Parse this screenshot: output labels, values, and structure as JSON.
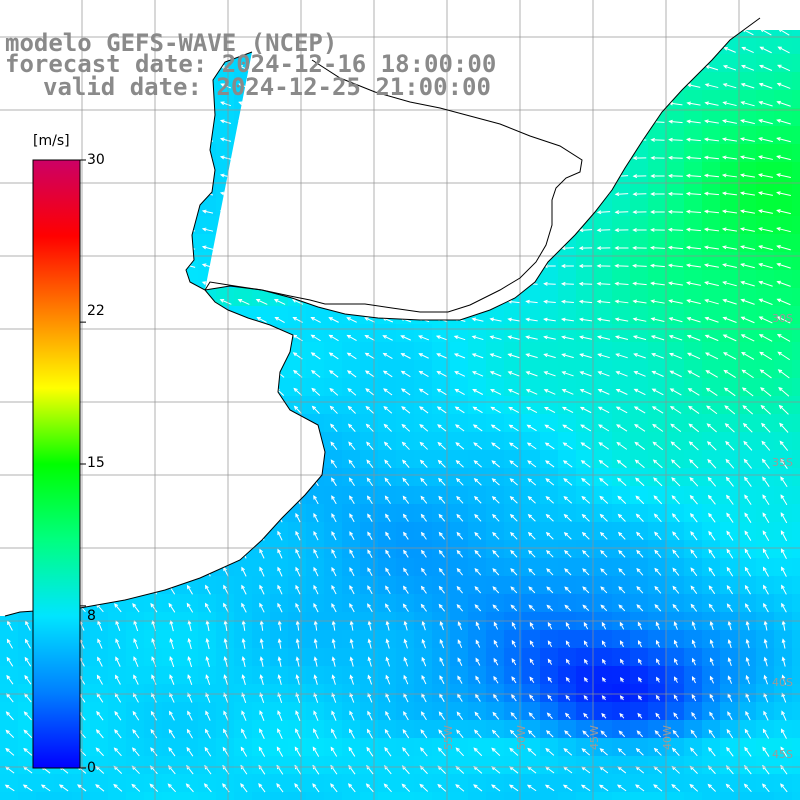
{
  "header": {
    "model": "modelo GEFS-WAVE (NCEP)",
    "forecast": "forecast date: 2024-12-16 18:00:00",
    "valid": "valid date: 2024-12-25 21:00:00"
  },
  "colorbar": {
    "units": "[m/s]",
    "min": 0,
    "max": 30,
    "tick_labels": [
      "30",
      "22",
      "15",
      "8",
      "0"
    ],
    "tick_values": [
      30,
      22,
      15,
      8,
      0
    ],
    "colors": [
      "#0000ff",
      "#0080ff",
      "#00e5ff",
      "#00ff80",
      "#00ff00",
      "#ffff00",
      "#ff8000",
      "#ff0000",
      "#cc0066"
    ]
  },
  "map": {
    "land_color": "#ffffff",
    "coastline_color": "#000000",
    "grid_color": "#909090",
    "arrow_color": "#ffffff",
    "lon_labels": [
      "55W",
      "50W",
      "45W",
      "40W"
    ],
    "lat_labels": [
      "30S",
      "35S",
      "40S",
      "45S"
    ],
    "lon_range": [
      -59,
      -45
    ],
    "lat_range": [
      -41,
      -30
    ]
  }
}
